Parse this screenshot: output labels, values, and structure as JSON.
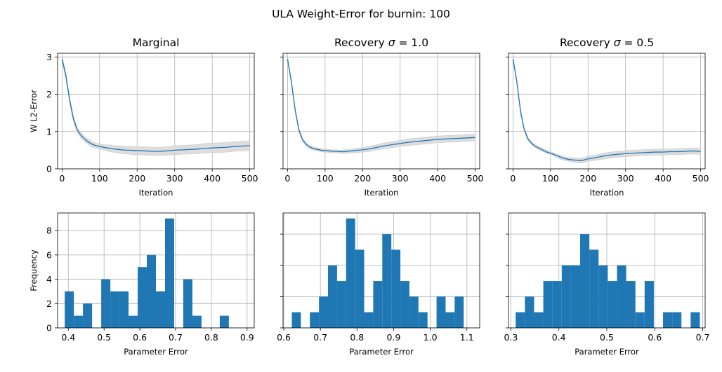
{
  "figure_title": "ULA Weight-Error for burnin: 100",
  "colors": {
    "line": "#1f77b4",
    "band": "#d9d9d9",
    "bar": "#1f77b4",
    "grid": "#b0b0b0"
  },
  "chart_data": [
    {
      "type": "line",
      "title_prefix": "Marginal",
      "title_sigma": "",
      "xlabel": "Iteration",
      "ylabel": "W L2-Error",
      "xlim": [
        -12,
        512
      ],
      "ylim": [
        0,
        3.1
      ],
      "xticks": [
        0,
        100,
        200,
        300,
        400,
        500
      ],
      "yticks": [
        0,
        1,
        2,
        3
      ],
      "grid": true,
      "series": [
        {
          "x": [
            0,
            10,
            20,
            30,
            40,
            50,
            60,
            70,
            80,
            90,
            100,
            110,
            120,
            130,
            140,
            150,
            160,
            170,
            180,
            190,
            200,
            220,
            240,
            260,
            280,
            300,
            320,
            340,
            360,
            380,
            400,
            420,
            440,
            460,
            480,
            500
          ],
          "y": [
            2.95,
            2.5,
            1.85,
            1.35,
            1.05,
            0.9,
            0.8,
            0.72,
            0.66,
            0.62,
            0.6,
            0.58,
            0.56,
            0.55,
            0.53,
            0.52,
            0.51,
            0.5,
            0.5,
            0.49,
            0.49,
            0.48,
            0.47,
            0.47,
            0.48,
            0.5,
            0.51,
            0.52,
            0.53,
            0.55,
            0.56,
            0.57,
            0.58,
            0.6,
            0.61,
            0.62
          ],
          "lower": [
            2.9,
            2.42,
            1.78,
            1.28,
            0.98,
            0.83,
            0.73,
            0.65,
            0.59,
            0.55,
            0.53,
            0.51,
            0.48,
            0.46,
            0.44,
            0.42,
            0.41,
            0.4,
            0.39,
            0.38,
            0.38,
            0.37,
            0.36,
            0.36,
            0.37,
            0.38,
            0.39,
            0.4,
            0.41,
            0.42,
            0.43,
            0.44,
            0.45,
            0.47,
            0.48,
            0.49
          ],
          "upper": [
            3.0,
            2.58,
            1.92,
            1.42,
            1.12,
            0.97,
            0.87,
            0.79,
            0.73,
            0.69,
            0.67,
            0.65,
            0.64,
            0.64,
            0.62,
            0.62,
            0.61,
            0.6,
            0.61,
            0.6,
            0.6,
            0.59,
            0.58,
            0.58,
            0.59,
            0.62,
            0.63,
            0.64,
            0.65,
            0.68,
            0.69,
            0.7,
            0.71,
            0.73,
            0.74,
            0.75
          ]
        }
      ]
    },
    {
      "type": "line",
      "title_prefix": "Recovery ",
      "title_sigma": "σ",
      "title_suffix": " = 1.0",
      "xlabel": "Iteration",
      "ylabel": "",
      "xlim": [
        -12,
        512
      ],
      "ylim": [
        0,
        3.1
      ],
      "xticks": [
        0,
        100,
        200,
        300,
        400,
        500
      ],
      "yticks": [
        0,
        1,
        2,
        3
      ],
      "grid": true,
      "series": [
        {
          "x": [
            0,
            10,
            20,
            30,
            40,
            50,
            60,
            70,
            80,
            90,
            100,
            110,
            120,
            130,
            140,
            150,
            160,
            170,
            180,
            190,
            200,
            220,
            240,
            260,
            280,
            300,
            320,
            340,
            360,
            380,
            400,
            420,
            440,
            460,
            480,
            500
          ],
          "y": [
            2.95,
            2.35,
            1.6,
            1.05,
            0.78,
            0.65,
            0.58,
            0.54,
            0.52,
            0.5,
            0.49,
            0.48,
            0.47,
            0.47,
            0.46,
            0.46,
            0.47,
            0.48,
            0.49,
            0.5,
            0.51,
            0.54,
            0.58,
            0.62,
            0.65,
            0.68,
            0.71,
            0.73,
            0.75,
            0.77,
            0.79,
            0.8,
            0.81,
            0.82,
            0.83,
            0.84
          ],
          "lower": [
            2.9,
            2.29,
            1.55,
            1.0,
            0.74,
            0.61,
            0.54,
            0.5,
            0.48,
            0.46,
            0.45,
            0.44,
            0.43,
            0.43,
            0.42,
            0.41,
            0.42,
            0.43,
            0.43,
            0.44,
            0.45,
            0.47,
            0.51,
            0.54,
            0.57,
            0.6,
            0.62,
            0.64,
            0.66,
            0.68,
            0.7,
            0.71,
            0.72,
            0.73,
            0.74,
            0.75
          ],
          "upper": [
            3.0,
            2.41,
            1.65,
            1.1,
            0.82,
            0.69,
            0.62,
            0.58,
            0.56,
            0.54,
            0.53,
            0.52,
            0.51,
            0.51,
            0.5,
            0.51,
            0.52,
            0.53,
            0.55,
            0.56,
            0.57,
            0.61,
            0.65,
            0.7,
            0.73,
            0.76,
            0.8,
            0.82,
            0.84,
            0.86,
            0.88,
            0.89,
            0.9,
            0.91,
            0.92,
            0.93
          ]
        }
      ]
    },
    {
      "type": "line",
      "title_prefix": "Recovery ",
      "title_sigma": "σ",
      "title_suffix": " = 0.5",
      "xlabel": "Iteration",
      "ylabel": "",
      "xlim": [
        -12,
        512
      ],
      "ylim": [
        0,
        3.1
      ],
      "xticks": [
        0,
        100,
        200,
        300,
        400,
        500
      ],
      "yticks": [
        0,
        1,
        2,
        3
      ],
      "grid": true,
      "series": [
        {
          "x": [
            0,
            10,
            20,
            30,
            40,
            50,
            60,
            70,
            80,
            90,
            100,
            110,
            120,
            130,
            140,
            150,
            160,
            170,
            180,
            190,
            200,
            220,
            240,
            260,
            280,
            300,
            320,
            340,
            360,
            380,
            400,
            420,
            440,
            460,
            480,
            500
          ],
          "y": [
            2.95,
            2.35,
            1.55,
            1.05,
            0.8,
            0.68,
            0.6,
            0.55,
            0.5,
            0.45,
            0.42,
            0.38,
            0.34,
            0.3,
            0.27,
            0.25,
            0.24,
            0.23,
            0.22,
            0.24,
            0.27,
            0.3,
            0.34,
            0.37,
            0.39,
            0.41,
            0.42,
            0.43,
            0.44,
            0.45,
            0.45,
            0.46,
            0.46,
            0.47,
            0.48,
            0.47
          ],
          "lower": [
            2.9,
            2.3,
            1.5,
            1.01,
            0.76,
            0.64,
            0.56,
            0.51,
            0.46,
            0.41,
            0.38,
            0.34,
            0.29,
            0.25,
            0.22,
            0.2,
            0.18,
            0.17,
            0.16,
            0.17,
            0.2,
            0.23,
            0.26,
            0.29,
            0.31,
            0.33,
            0.34,
            0.35,
            0.36,
            0.37,
            0.37,
            0.38,
            0.38,
            0.39,
            0.4,
            0.39
          ],
          "upper": [
            3.0,
            2.4,
            1.6,
            1.09,
            0.84,
            0.72,
            0.64,
            0.59,
            0.54,
            0.49,
            0.46,
            0.42,
            0.39,
            0.35,
            0.32,
            0.3,
            0.3,
            0.29,
            0.28,
            0.31,
            0.34,
            0.37,
            0.42,
            0.45,
            0.47,
            0.49,
            0.5,
            0.51,
            0.52,
            0.53,
            0.53,
            0.54,
            0.54,
            0.55,
            0.56,
            0.55
          ]
        }
      ]
    },
    {
      "type": "bar",
      "title_prefix": "",
      "xlabel": "Parameter Error",
      "ylabel": "Frequency",
      "xlim": [
        0.37,
        0.92
      ],
      "ylim": [
        0,
        9.45
      ],
      "xticks": [
        0.4,
        0.5,
        0.6,
        0.7,
        0.8,
        0.9
      ],
      "xtick_labels": [
        "0.4",
        "0.5",
        "0.6",
        "0.7",
        "0.8",
        "0.9"
      ],
      "yticks": [
        0,
        2,
        4,
        6,
        8
      ],
      "grid": true,
      "bin_start": 0.39,
      "bin_width": 0.0255,
      "counts": [
        3,
        1,
        2,
        0,
        4,
        3,
        3,
        1,
        5,
        6,
        3,
        9,
        0,
        4,
        1,
        0,
        0,
        1
      ]
    },
    {
      "type": "bar",
      "title_prefix": "",
      "xlabel": "Parameter Error",
      "ylabel": "",
      "xlim": [
        0.598,
        1.135
      ],
      "ylim": [
        0,
        7.35
      ],
      "xticks": [
        0.6,
        0.7,
        0.8,
        0.9,
        1.0,
        1.1
      ],
      "xtick_labels": [
        "0.6",
        "0.7",
        "0.8",
        "0.9",
        "1.0",
        "1.1"
      ],
      "yticks": [
        0,
        2,
        4,
        6,
        8
      ],
      "grid": true,
      "bin_start": 0.622,
      "bin_width": 0.0247,
      "counts": [
        1,
        0,
        1,
        2,
        4,
        3,
        7,
        5,
        1,
        3,
        6,
        5,
        3,
        2,
        1,
        0,
        2,
        1,
        2
      ]
    },
    {
      "type": "bar",
      "title_prefix": "",
      "xlabel": "Parameter Error",
      "ylabel": "",
      "xlim": [
        0.295,
        0.705
      ],
      "ylim": [
        0,
        7.35
      ],
      "xticks": [
        0.3,
        0.4,
        0.5,
        0.6,
        0.7
      ],
      "xtick_labels": [
        "0.3",
        "0.4",
        "0.5",
        "0.6",
        "0.7"
      ],
      "yticks": [
        0,
        2,
        4,
        6,
        8
      ],
      "grid": true,
      "bin_start": 0.31,
      "bin_width": 0.0192,
      "counts": [
        1,
        2,
        1,
        3,
        3,
        4,
        4,
        6,
        5,
        4,
        3,
        4,
        3,
        1,
        3,
        0,
        1,
        1,
        0,
        1
      ]
    }
  ]
}
